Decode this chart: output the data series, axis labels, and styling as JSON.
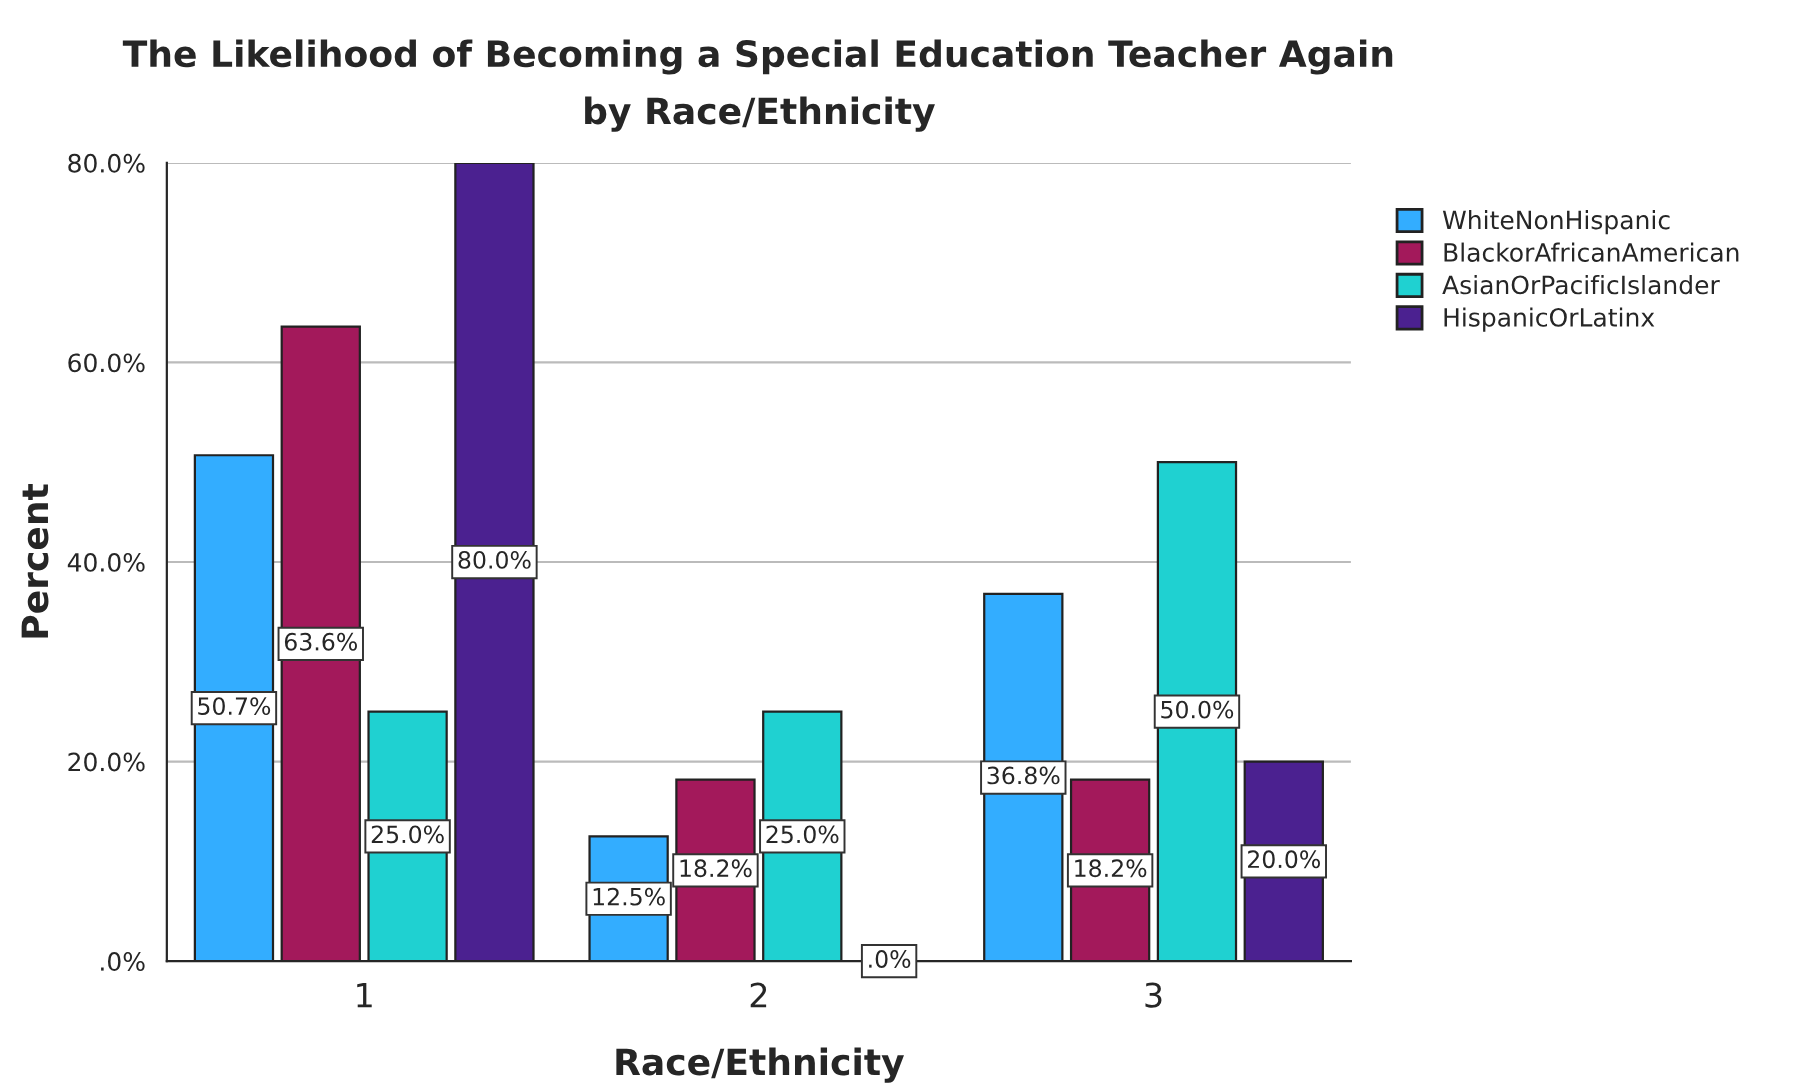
{
  "chart_data": {
    "type": "bar",
    "title": "The Likelihood of Becoming a Special Education Teacher Again\nby Race/Ethnicity",
    "xlabel": "Race/Ethnicity",
    "ylabel": "Percent",
    "categories": [
      "1",
      "2",
      "3"
    ],
    "series": [
      {
        "name": "WhiteNonHispanic",
        "color": "#33adff",
        "values": [
          50.7,
          12.5,
          36.8
        ],
        "value_labels": [
          "50.7%",
          "12.5%",
          "36.8%"
        ]
      },
      {
        "name": "BlackorAfricanAmerican",
        "color": "#a3195b",
        "values": [
          63.6,
          18.2,
          18.2
        ],
        "value_labels": [
          "63.6%",
          "18.2%",
          "18.2%"
        ]
      },
      {
        "name": "AsianOrPacificIslander",
        "color": "#1fd1d1",
        "values": [
          25.0,
          25.0,
          50.0
        ],
        "value_labels": [
          "25.0%",
          "25.0%",
          "50.0%"
        ]
      },
      {
        "name": "HispanicOrLatinx",
        "color": "#4b2190",
        "values": [
          80.0,
          0.0,
          20.0
        ],
        "value_labels": [
          "80.0%",
          ".0%",
          "20.0%"
        ]
      }
    ],
    "ylim": [
      0,
      80
    ],
    "yticks": [
      {
        "value": 0,
        "label": ".0%"
      },
      {
        "value": 20,
        "label": "20.0%"
      },
      {
        "value": 40,
        "label": "40.0%"
      },
      {
        "value": 60,
        "label": "60.0%"
      },
      {
        "value": 80,
        "label": "80.0%"
      }
    ],
    "grid": "y",
    "legend": "top right"
  }
}
